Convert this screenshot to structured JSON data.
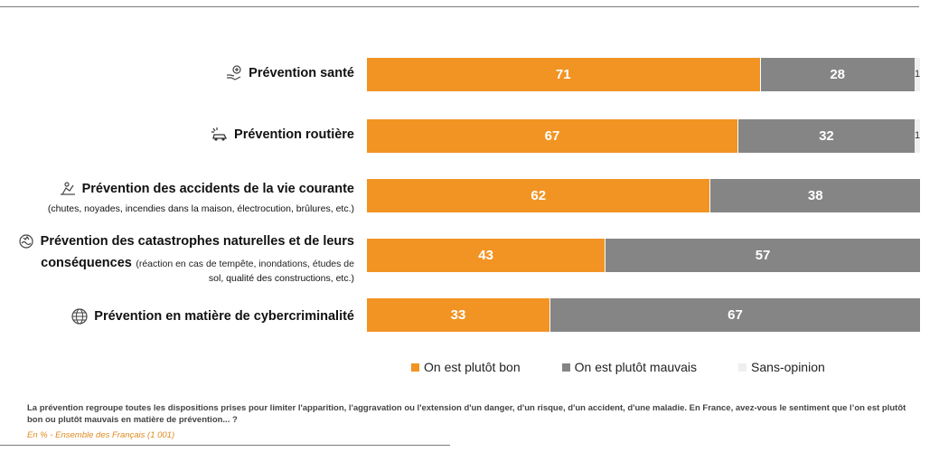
{
  "chart_data": {
    "type": "bar",
    "orientation": "horizontal",
    "stacked": true,
    "xlim": [
      0,
      100
    ],
    "categories": [
      {
        "title": "Prévention santé",
        "subtitle": "",
        "icon": "health-hand-icon"
      },
      {
        "title": "Prévention routière",
        "subtitle": "",
        "icon": "car-crash-icon"
      },
      {
        "title": "Prévention des accidents de la vie courante",
        "subtitle": "(chutes, noyades, incendies dans la maison, électrocution, brûlures, etc.)",
        "icon": "home-accident-icon"
      },
      {
        "title": "Prévention des catastrophes naturelles et de leurs",
        "title2": "conséquences",
        "subtitle": "(réaction en cas de tempête, inondations, études de",
        "subtitle2": "sol, qualité des constructions, etc.)",
        "icon": "natural-disaster-icon"
      },
      {
        "title": "Prévention en matière de cybercriminalité",
        "subtitle": "",
        "icon": "globe-cyber-icon"
      }
    ],
    "series": [
      {
        "name": "On est plutôt bon",
        "color": "#f29423",
        "values": [
          71,
          67,
          62,
          43,
          33
        ]
      },
      {
        "name": "On est plutôt mauvais",
        "color": "#858585",
        "values": [
          28,
          32,
          38,
          57,
          67
        ]
      },
      {
        "name": "Sans-opinion",
        "color": "#efefef",
        "values": [
          1,
          1,
          0,
          0,
          0
        ]
      }
    ],
    "legend_position": "bottom",
    "grid": false
  },
  "footer": {
    "question": "La prévention regroupe toutes les dispositions prises pour limiter l'apparition, l'aggravation ou l'extension d'un danger, d'un risque, d'un accident, d'une maladie. En France, avez-vous le sentiment que l’on est plutôt bon ou plutôt mauvais en matière de prévention... ?",
    "base": "En % - Ensemble des Français (1 001)"
  }
}
